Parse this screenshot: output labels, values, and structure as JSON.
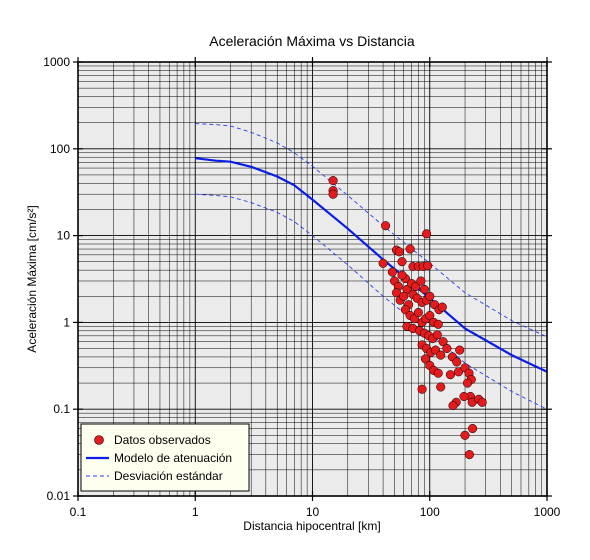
{
  "chart_data": {
    "type": "scatter",
    "title": "Aceleración Máxima vs Distancia",
    "xlabel": "Distancia hipocentral [km]",
    "ylabel": "Aceleración Máxima [cm/s²]",
    "xscale": "log",
    "yscale": "log",
    "xlim": [
      0.1,
      1000
    ],
    "ylim": [
      0.01,
      1000
    ],
    "xticks": [
      "0.1",
      "1",
      "10",
      "100",
      "1000"
    ],
    "yticks": [
      "0.01",
      "0.1",
      "1",
      "10",
      "100",
      "1000"
    ],
    "grid": true,
    "legend_position": "bottom-left",
    "colors": {
      "points": "#e41a1c",
      "model": "#0a1ee6",
      "band": "#2a3ef0",
      "plot_bg": "#ebebeb",
      "legend_bg": "#fffff0"
    },
    "series": [
      {
        "name": "Datos observados",
        "kind": "scatter",
        "points": [
          [
            15,
            43
          ],
          [
            15,
            33
          ],
          [
            15,
            30
          ],
          [
            42,
            13
          ],
          [
            94,
            10.5
          ],
          [
            40,
            4.8
          ],
          [
            48,
            3.8
          ],
          [
            52,
            6.8
          ],
          [
            55,
            6.5
          ],
          [
            58,
            5
          ],
          [
            62,
            3.2
          ],
          [
            68,
            7
          ],
          [
            72,
            4.4
          ],
          [
            80,
            4.4
          ],
          [
            88,
            4.4
          ],
          [
            96,
            4.5
          ],
          [
            50,
            3
          ],
          [
            54,
            2.6
          ],
          [
            58,
            3.5
          ],
          [
            64,
            2.4
          ],
          [
            70,
            2.8
          ],
          [
            76,
            2.6
          ],
          [
            84,
            3
          ],
          [
            90,
            2.4
          ],
          [
            52,
            2.2
          ],
          [
            56,
            1.8
          ],
          [
            60,
            2
          ],
          [
            66,
            1.6
          ],
          [
            72,
            2.1
          ],
          [
            78,
            1.9
          ],
          [
            86,
            1.7
          ],
          [
            94,
            1.8
          ],
          [
            100,
            2
          ],
          [
            110,
            1.6
          ],
          [
            120,
            1.4
          ],
          [
            128,
            1.5
          ],
          [
            62,
            1.4
          ],
          [
            68,
            1.2
          ],
          [
            74,
            1.1
          ],
          [
            80,
            1.3
          ],
          [
            86,
            1
          ],
          [
            92,
            1.1
          ],
          [
            100,
            1.2
          ],
          [
            108,
            1
          ],
          [
            118,
            0.95
          ],
          [
            64,
            0.9
          ],
          [
            72,
            0.85
          ],
          [
            82,
            0.8
          ],
          [
            90,
            0.75
          ],
          [
            98,
            0.7
          ],
          [
            106,
            0.65
          ],
          [
            116,
            0.72
          ],
          [
            130,
            0.6
          ],
          [
            86,
            0.55
          ],
          [
            94,
            0.5
          ],
          [
            102,
            0.45
          ],
          [
            112,
            0.48
          ],
          [
            124,
            0.42
          ],
          [
            140,
            0.5
          ],
          [
            156,
            0.4
          ],
          [
            170,
            0.35
          ],
          [
            180,
            0.48
          ],
          [
            92,
            0.38
          ],
          [
            100,
            0.32
          ],
          [
            108,
            0.28
          ],
          [
            118,
            0.26
          ],
          [
            150,
            0.25
          ],
          [
            176,
            0.27
          ],
          [
            200,
            0.3
          ],
          [
            216,
            0.26
          ],
          [
            226,
            0.22
          ],
          [
            210,
            0.2
          ],
          [
            222,
            0.14
          ],
          [
            230,
            0.12
          ],
          [
            196,
            0.14
          ],
          [
            168,
            0.12
          ],
          [
            158,
            0.11
          ],
          [
            262,
            0.13
          ],
          [
            280,
            0.12
          ],
          [
            86,
            0.17
          ],
          [
            124,
            0.18
          ],
          [
            232,
            0.06
          ],
          [
            200,
            0.05
          ],
          [
            218,
            0.03
          ]
        ]
      },
      {
        "name": "Modelo de atenuación",
        "kind": "line",
        "points": [
          [
            1,
            78
          ],
          [
            1.5,
            73
          ],
          [
            2,
            71
          ],
          [
            3,
            62
          ],
          [
            5,
            48
          ],
          [
            7,
            38
          ],
          [
            10,
            26
          ],
          [
            20,
            12
          ],
          [
            40,
            5.3
          ],
          [
            100,
            1.9
          ],
          [
            200,
            0.85
          ],
          [
            500,
            0.42
          ],
          [
            1000,
            0.27
          ]
        ]
      },
      {
        "name": "Desviación estándar",
        "kind": "dashed",
        "bands": [
          [
            [
              1,
              195
            ],
            [
              1.5,
              190
            ],
            [
              2,
              183
            ],
            [
              3,
              155
            ],
            [
              5,
              117
            ],
            [
              7,
              90
            ],
            [
              10,
              63
            ],
            [
              20,
              29
            ],
            [
              40,
              13
            ],
            [
              100,
              4.8
            ],
            [
              200,
              2.2
            ],
            [
              500,
              1.05
            ],
            [
              1000,
              0.68
            ]
          ],
          [
            [
              1,
              30
            ],
            [
              1.5,
              29
            ],
            [
              2,
              28
            ],
            [
              3,
              24
            ],
            [
              5,
              18.5
            ],
            [
              7,
              14.5
            ],
            [
              10,
              10
            ],
            [
              20,
              4.6
            ],
            [
              40,
              2
            ],
            [
              100,
              0.75
            ],
            [
              200,
              0.34
            ],
            [
              500,
              0.16
            ],
            [
              1000,
              0.1
            ]
          ]
        ]
      }
    ]
  }
}
